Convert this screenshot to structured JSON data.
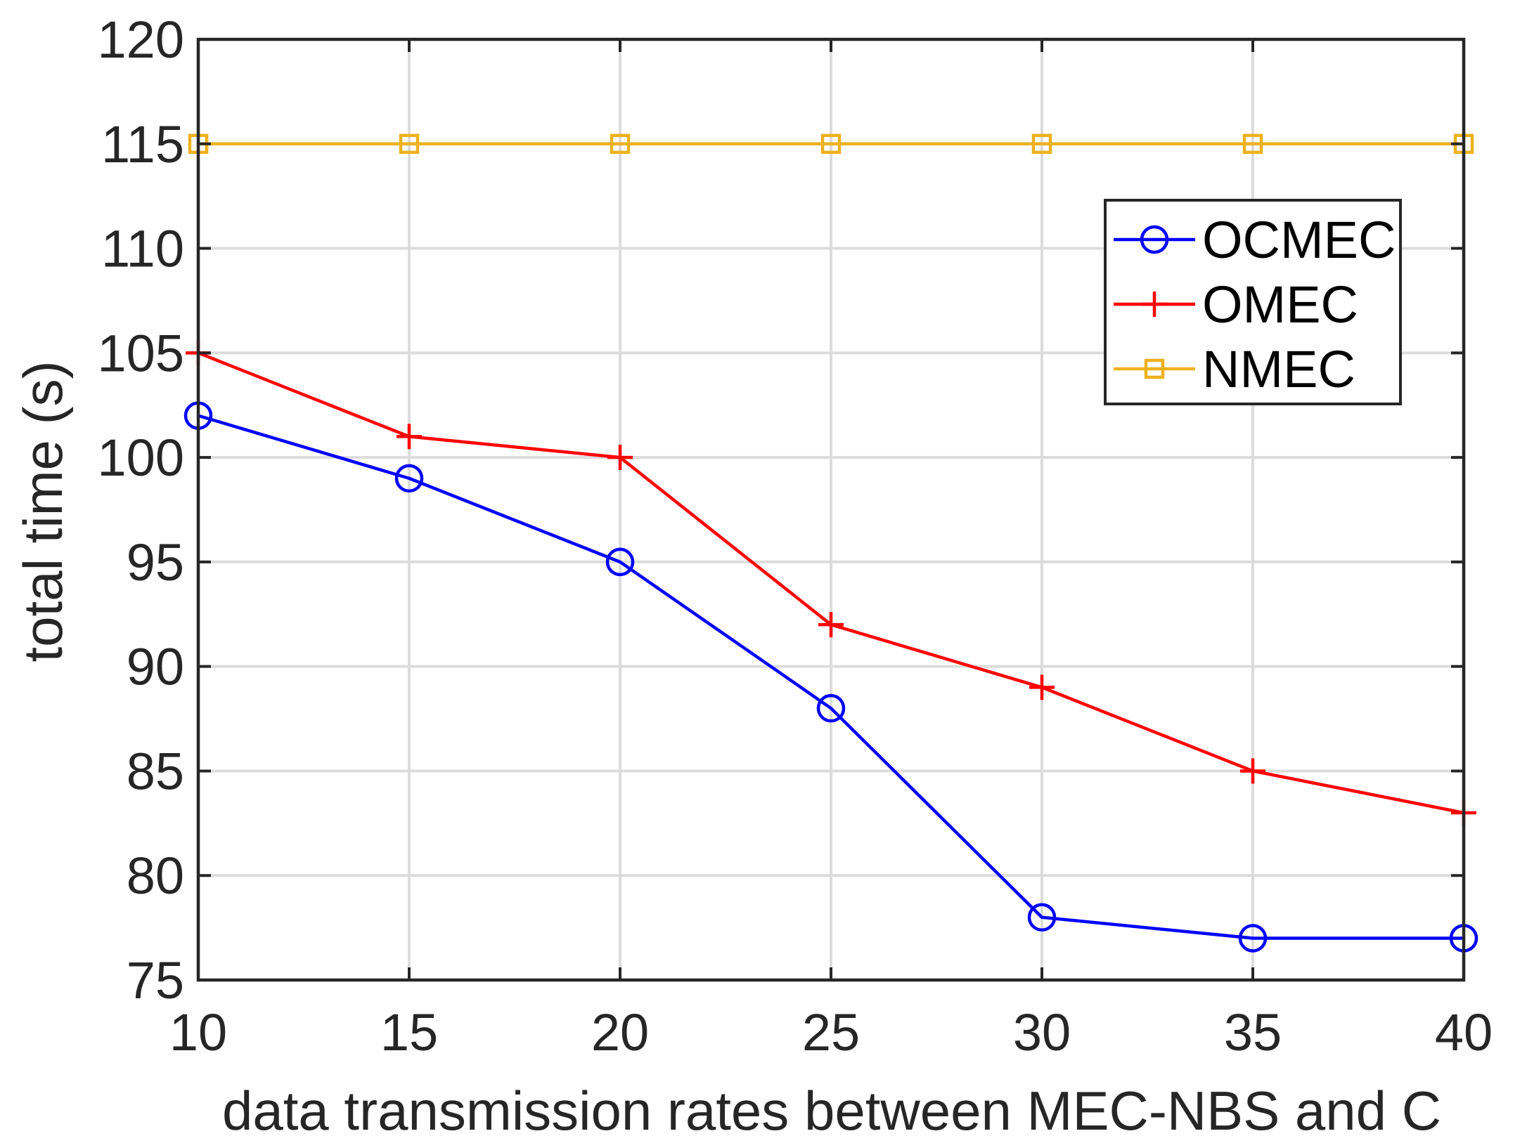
{
  "chart_data": {
    "type": "line",
    "title": "",
    "xlabel": "data transmission rates between MEC-NBS and C",
    "ylabel": "total time (s)",
    "x": [
      10,
      15,
      20,
      25,
      30,
      35,
      40
    ],
    "xlim": [
      10,
      40
    ],
    "ylim": [
      75,
      120
    ],
    "xticks": [
      10,
      15,
      20,
      25,
      30,
      35,
      40
    ],
    "yticks": [
      75,
      80,
      85,
      90,
      95,
      100,
      105,
      110,
      115,
      120
    ],
    "grid": true,
    "legend_position": "top-right",
    "series": [
      {
        "name": "OCMEC",
        "color": "#0000ff",
        "marker": "circle",
        "values": [
          102,
          99,
          95,
          88,
          78,
          77,
          77
        ]
      },
      {
        "name": "OMEC",
        "color": "#ff0000",
        "marker": "plus",
        "values": [
          105,
          101,
          100,
          92,
          89,
          85,
          83
        ]
      },
      {
        "name": "NMEC",
        "color": "#edb120",
        "marker": "square",
        "values": [
          115,
          115,
          115,
          115,
          115,
          115,
          115
        ]
      }
    ]
  }
}
